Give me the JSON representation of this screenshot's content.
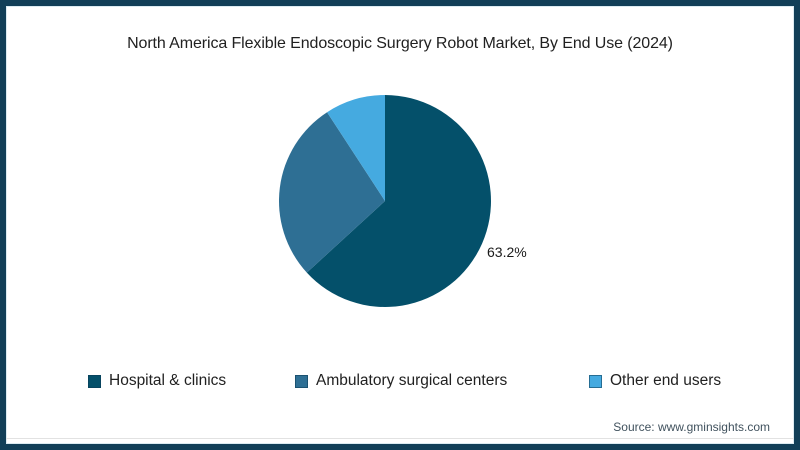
{
  "frame": {
    "border_color": "#123F58",
    "inner_line_color": "#DCEBF2"
  },
  "title": "North America Flexible Endoscopic Surgery Robot Market, By End Use (2024)",
  "chart_data": {
    "type": "pie",
    "title": "North America Flexible Endoscopic Surgery Robot Market, By End Use (2024)",
    "labels": [
      "Hospital & clinics",
      "Ambulatory surgical centers",
      "Other end users"
    ],
    "values": [
      63.2,
      27.6,
      9.2
    ],
    "colors": [
      "#04506A",
      "#2E6F94",
      "#45AAE0"
    ],
    "data_labels": [
      "63.2%",
      "",
      ""
    ],
    "start_angle_deg": 0,
    "direction": "clockwise",
    "legend_position": "bottom",
    "note_only_labeled_value": "63.2%"
  },
  "pie_label": "63.2%",
  "legend": {
    "items": [
      {
        "label": "Hospital & clinics",
        "color": "#04506A"
      },
      {
        "label": "Ambulatory surgical centers",
        "color": "#2E6F94"
      },
      {
        "label": "Other end users",
        "color": "#45AAE0"
      }
    ]
  },
  "source": "Source: www.gminsights.com"
}
